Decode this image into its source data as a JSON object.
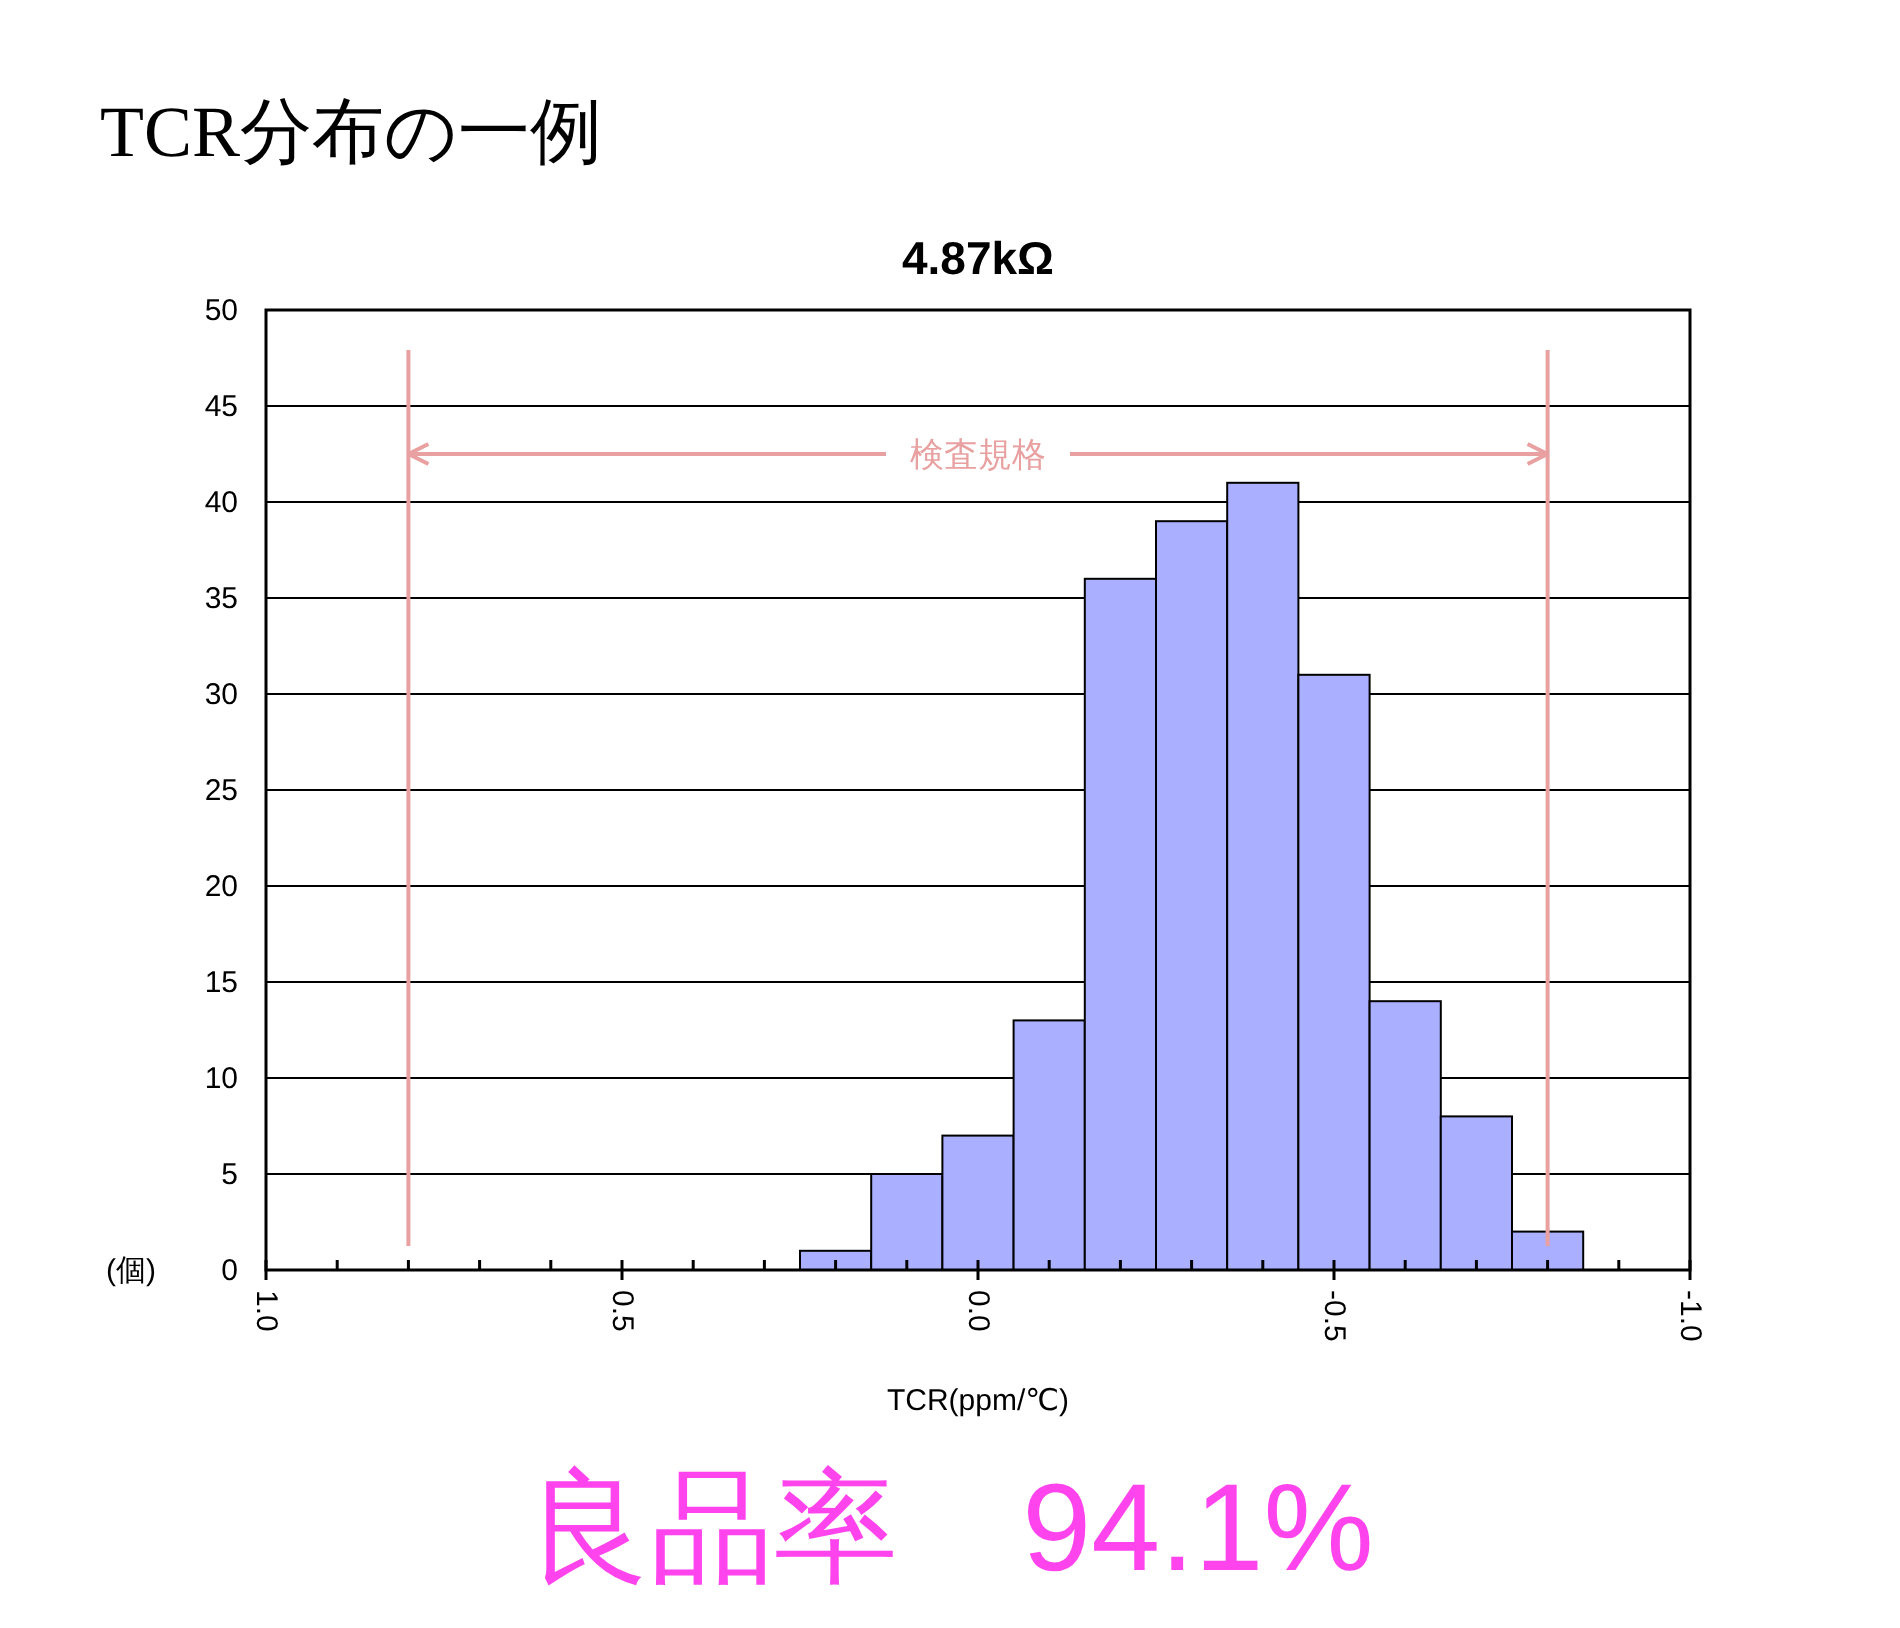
{
  "chart_data": {
    "type": "histogram",
    "title": "TCR分布の一例",
    "subtitle": "4.87kΩ",
    "xlabel": "TCR(ppm/℃)",
    "ylabel": "(個)",
    "bins": [
      0.25,
      0.15,
      0.05,
      -0.05,
      -0.15,
      -0.25,
      -0.35,
      -0.45,
      -0.55,
      -0.65,
      -0.75,
      -0.85
    ],
    "values": [
      1,
      5,
      7,
      13,
      36,
      39,
      41,
      31,
      14,
      8,
      2
    ],
    "color": "#aab0ff",
    "xlim": [
      1.0,
      -1.0
    ],
    "xticks": [
      {
        "value": 1.0,
        "label": "1.0"
      },
      {
        "value": 0.9,
        "label": null
      },
      {
        "value": 0.8,
        "label": null
      },
      {
        "value": 0.7,
        "label": null
      },
      {
        "value": 0.6,
        "label": null
      },
      {
        "value": 0.5,
        "label": "0.5"
      },
      {
        "value": 0.4,
        "label": null
      },
      {
        "value": 0.3,
        "label": null
      },
      {
        "value": 0.2,
        "label": null
      },
      {
        "value": 0.1,
        "label": null
      },
      {
        "value": 0.0,
        "label": "0.0"
      },
      {
        "value": -0.1,
        "label": null
      },
      {
        "value": -0.2,
        "label": null
      },
      {
        "value": -0.3,
        "label": null
      },
      {
        "value": -0.4,
        "label": null
      },
      {
        "value": -0.5,
        "label": "-0.5"
      },
      {
        "value": -0.6,
        "label": null
      },
      {
        "value": -0.7,
        "label": null
      },
      {
        "value": -0.8,
        "label": null
      },
      {
        "value": -0.9,
        "label": null
      },
      {
        "value": -1.0,
        "label": "-1.0"
      }
    ],
    "ylim": [
      0,
      50
    ],
    "yticks": [
      0,
      5,
      10,
      15,
      20,
      25,
      30,
      35,
      40,
      45,
      50
    ],
    "grid": "y",
    "ref_lines": [
      {
        "axis": "x",
        "value": 0.8,
        "color": "#e8a0a0"
      },
      {
        "axis": "x",
        "value": -0.8,
        "color": "#e8a0a0"
      }
    ],
    "annotations": [
      {
        "text": "検査規格",
        "x": 0.8,
        "y": 42.5
      },
      "良品率　94.1%"
    ]
  }
}
